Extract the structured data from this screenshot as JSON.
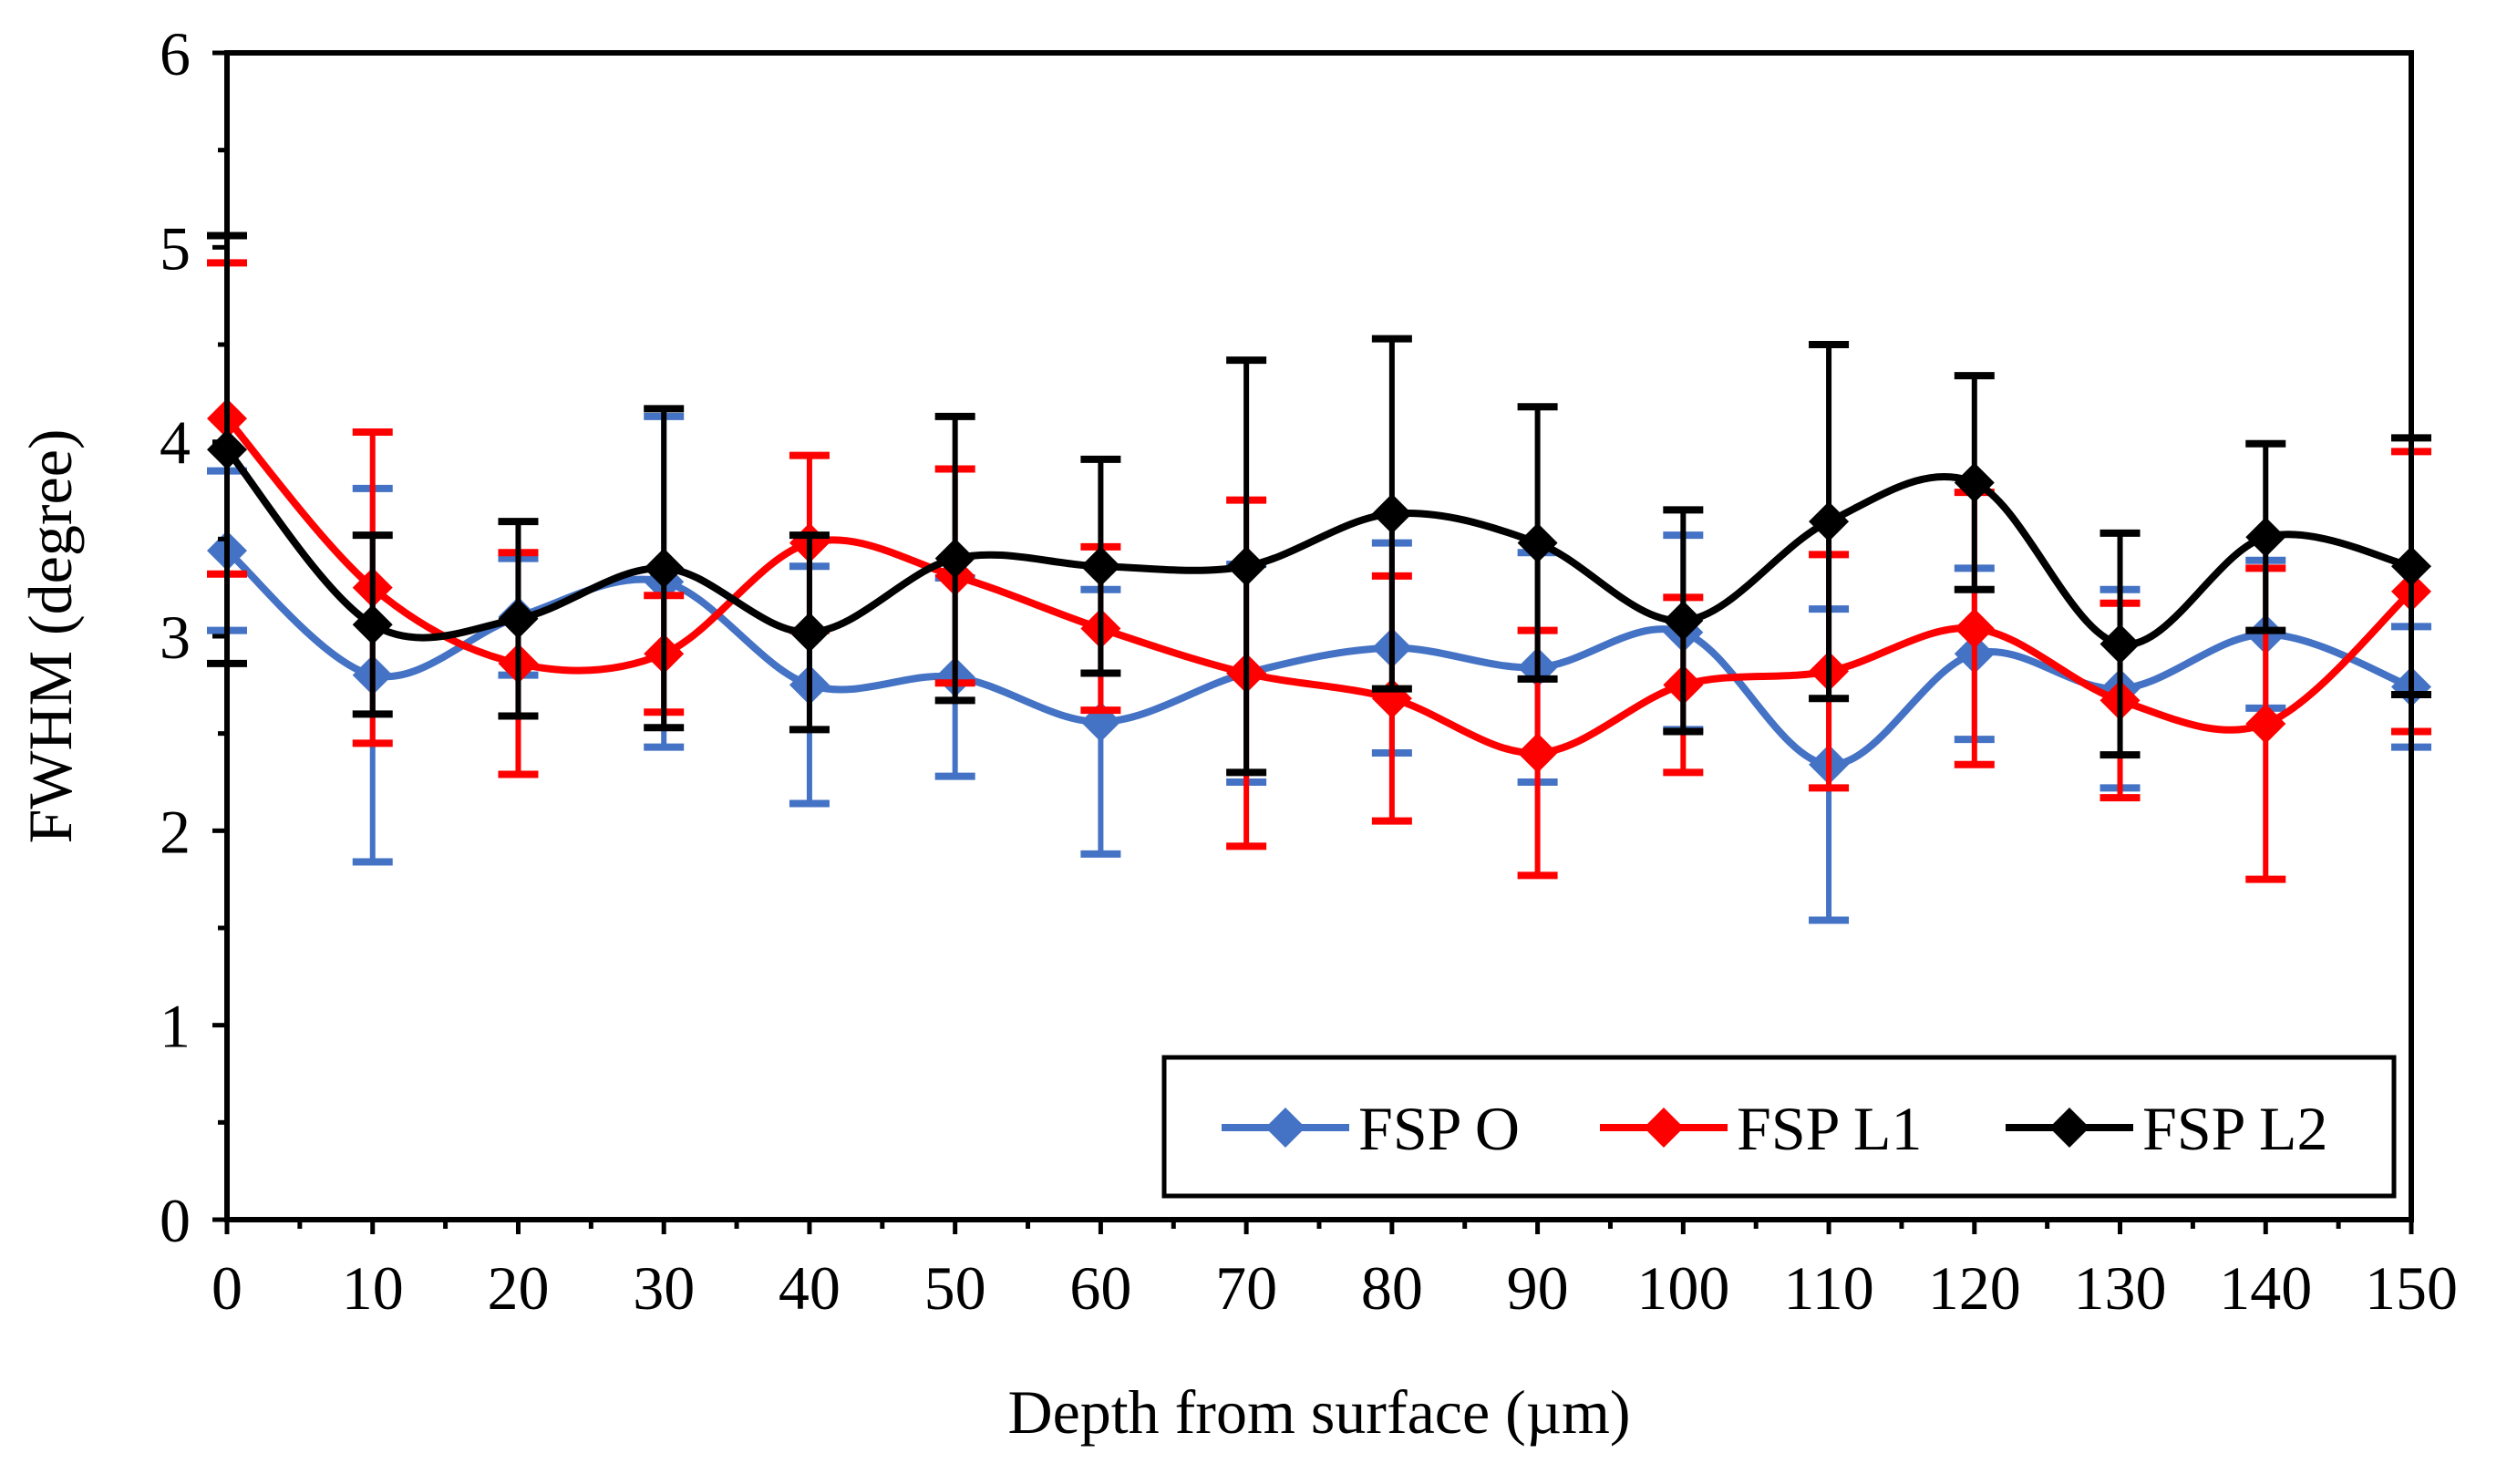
{
  "chart_data": {
    "type": "line",
    "title": "",
    "xlabel": "Depth from surface (µm)",
    "ylabel": "FWHM (degree)",
    "xlim": [
      0,
      150
    ],
    "ylim": [
      0,
      6
    ],
    "x": [
      0,
      10,
      20,
      30,
      40,
      50,
      60,
      70,
      80,
      90,
      100,
      110,
      120,
      130,
      140,
      150
    ],
    "xticks": [
      "0",
      "10",
      "20",
      "30",
      "40",
      "50",
      "60",
      "70",
      "80",
      "90",
      "100",
      "110",
      "120",
      "130",
      "140",
      "150"
    ],
    "yticks": [
      "0",
      "1",
      "2",
      "3",
      "4",
      "5",
      "6"
    ],
    "grid": false,
    "legend_position": "bottom-right",
    "series": [
      {
        "name": "FSP O",
        "color": "#4472C4",
        "values": [
          3.44,
          2.8,
          3.1,
          3.28,
          2.75,
          2.79,
          2.56,
          2.81,
          2.94,
          2.84,
          3.02,
          2.34,
          2.91,
          2.73,
          3.01,
          2.74
        ],
        "errors": [
          0.41,
          0.96,
          0.3,
          0.85,
          0.61,
          0.51,
          0.68,
          0.56,
          0.54,
          0.59,
          0.5,
          0.8,
          0.44,
          0.51,
          0.38,
          0.31
        ]
      },
      {
        "name": "FSP L1",
        "color": "#FF0000",
        "values": [
          4.12,
          3.25,
          2.86,
          2.91,
          3.48,
          3.31,
          3.04,
          2.81,
          2.68,
          2.4,
          2.75,
          2.82,
          3.04,
          2.67,
          2.55,
          3.23
        ],
        "errors": [
          0.8,
          0.8,
          0.57,
          0.3,
          0.45,
          0.55,
          0.42,
          0.89,
          0.63,
          0.63,
          0.45,
          0.6,
          0.7,
          0.5,
          0.8,
          0.72
        ]
      },
      {
        "name": "FSP L2",
        "color": "#000000",
        "values": [
          3.96,
          3.06,
          3.09,
          3.35,
          3.02,
          3.4,
          3.36,
          3.36,
          3.63,
          3.48,
          3.08,
          3.59,
          3.79,
          2.96,
          3.51,
          3.36
        ],
        "errors": [
          1.1,
          0.46,
          0.5,
          0.82,
          0.5,
          0.73,
          0.55,
          1.06,
          0.9,
          0.7,
          0.57,
          0.91,
          0.55,
          0.57,
          0.48,
          0.66
        ]
      }
    ]
  }
}
